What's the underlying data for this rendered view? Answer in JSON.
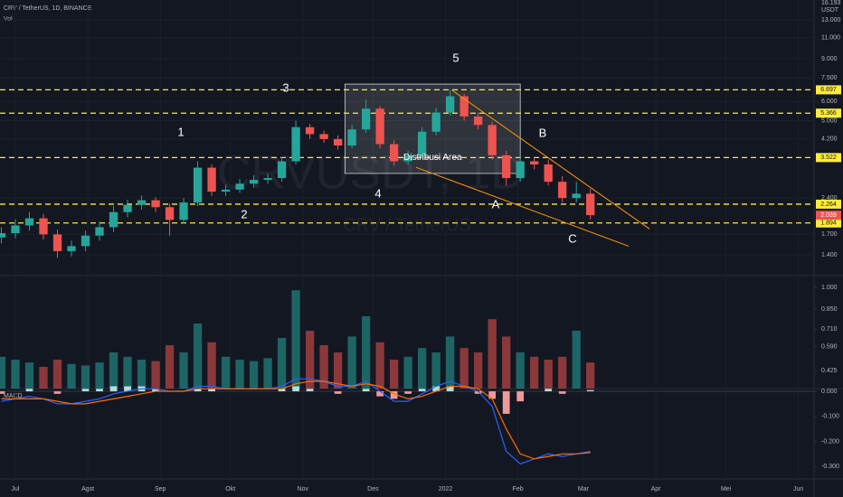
{
  "header": {
    "symbol": "CRV / TetherUS, 1D, BINANCE",
    "vol_label": "Vol",
    "macd_label": "MACD",
    "watermark": "CRVUSDT, 1D",
    "watermark_sub": "CRV / TetherUS",
    "unit": "USDT",
    "axis_top": 16.193
  },
  "chart_data": [
    {
      "type": "candlestick",
      "log_scale": true,
      "grid": true,
      "x": [
        -6,
        0,
        6,
        12,
        18,
        24,
        30,
        36,
        42,
        48,
        54,
        60,
        66,
        72,
        78,
        84,
        90,
        96,
        102,
        108,
        114,
        120,
        126,
        132,
        138,
        144,
        150,
        156,
        162,
        168,
        174,
        180,
        186,
        192,
        198,
        204,
        210,
        216,
        222,
        228,
        234,
        240,
        246
      ],
      "open": [
        1.65,
        1.72,
        1.85,
        1.98,
        1.7,
        1.45,
        1.52,
        1.68,
        1.82,
        2.1,
        2.25,
        2.35,
        2.2,
        1.95,
        2.3,
        3.2,
        2.55,
        2.6,
        2.75,
        2.85,
        2.9,
        3.4,
        4.7,
        4.4,
        4.2,
        3.95,
        4.6,
        5.6,
        4.0,
        3.4,
        3.6,
        4.5,
        5.4,
        6.3,
        5.2,
        4.8,
        3.6,
        2.9,
        3.4,
        3.3,
        2.8,
        2.4,
        2.5
      ],
      "high": [
        1.82,
        1.96,
        2.1,
        2.06,
        1.78,
        1.6,
        1.76,
        1.92,
        2.22,
        2.36,
        2.46,
        2.42,
        2.28,
        2.4,
        3.4,
        3.3,
        2.72,
        2.88,
        2.98,
        3.02,
        3.55,
        5.0,
        4.85,
        4.55,
        4.35,
        4.8,
        6.1,
        5.75,
        4.15,
        3.75,
        4.7,
        5.65,
        6.7,
        6.45,
        5.4,
        4.95,
        3.75,
        3.55,
        3.55,
        3.45,
        2.95,
        2.8,
        2.62
      ],
      "low": [
        1.56,
        1.64,
        1.76,
        1.62,
        1.36,
        1.38,
        1.45,
        1.6,
        1.74,
        2.0,
        2.15,
        2.1,
        1.68,
        1.88,
        2.22,
        2.45,
        2.45,
        2.52,
        2.65,
        2.75,
        2.8,
        3.3,
        4.2,
        4.05,
        3.8,
        3.85,
        4.45,
        3.85,
        3.25,
        3.3,
        3.5,
        4.35,
        5.25,
        5.0,
        4.6,
        3.45,
        2.7,
        2.8,
        3.15,
        2.7,
        2.3,
        2.3,
        1.96
      ],
      "close": [
        1.72,
        1.85,
        1.98,
        1.7,
        1.45,
        1.52,
        1.68,
        1.82,
        2.1,
        2.25,
        2.35,
        2.2,
        1.95,
        2.3,
        3.2,
        2.55,
        2.6,
        2.75,
        2.85,
        2.9,
        3.4,
        4.7,
        4.4,
        4.2,
        3.95,
        4.6,
        5.6,
        4.0,
        3.4,
        3.6,
        4.5,
        5.4,
        6.3,
        5.2,
        4.8,
        3.6,
        2.9,
        3.4,
        3.3,
        2.8,
        2.4,
        2.5,
        2.04
      ],
      "up_color": "#26a69a",
      "down_color": "#ef5350",
      "xlim": [
        -6.58,
        341.7
      ],
      "xticks": [
        {
          "value": 0,
          "label": "Jul"
        },
        {
          "value": 31,
          "label": "Agst"
        },
        {
          "value": 62,
          "label": "Sep"
        },
        {
          "value": 92,
          "label": "Okt"
        },
        {
          "value": 123,
          "label": "Nov"
        },
        {
          "value": 153,
          "label": "Des"
        },
        {
          "value": 184,
          "label": "2022"
        },
        {
          "value": 215,
          "label": "Feb"
        },
        {
          "value": 243,
          "label": "Mar"
        },
        {
          "value": 274,
          "label": "Apr"
        },
        {
          "value": 304,
          "label": "Mei"
        },
        {
          "value": 335,
          "label": "Jun"
        }
      ],
      "ylim": [
        1.2,
        15.7
      ],
      "yticks": [
        {
          "value": 13,
          "label": "13.000"
        },
        {
          "value": 11,
          "label": "11.000"
        },
        {
          "value": 9,
          "label": "9.000"
        },
        {
          "value": 7.5,
          "label": "7.500"
        },
        {
          "value": 6,
          "label": "6.000"
        },
        {
          "value": 5,
          "label": "5.000"
        },
        {
          "value": 4.2,
          "label": "4.200"
        },
        {
          "value": 2.4,
          "label": "2.400"
        },
        {
          "value": 1.7,
          "label": "1.700"
        },
        {
          "value": 1.4,
          "label": "1.400"
        }
      ],
      "levels": [
        6.697,
        5.366,
        3.522,
        2.264,
        1.894
      ],
      "level_color": "#ffeb3b",
      "last_price": 2.039,
      "last_color": "#ef5350",
      "box": {
        "label": "Distribusi Area",
        "x": [
          141,
          216
        ],
        "y": [
          7.07,
          3.03
        ]
      },
      "trendlines": [
        {
          "x": [
            186.9,
            271.3
          ],
          "y": [
            6.66,
            1.79
          ]
        },
        {
          "x": [
            171.4,
            262.4
          ],
          "y": [
            3.21,
            1.52
          ]
        }
      ],
      "trend_color": "#ff9800",
      "annotations": [
        "1",
        "2",
        "3",
        "4",
        "5",
        "A",
        "B",
        "C"
      ]
    },
    {
      "type": "bar",
      "x": [
        -6,
        0,
        6,
        12,
        18,
        24,
        30,
        36,
        42,
        48,
        54,
        60,
        66,
        72,
        78,
        84,
        90,
        96,
        102,
        108,
        114,
        120,
        126,
        132,
        138,
        144,
        150,
        156,
        162,
        168,
        174,
        180,
        186,
        192,
        198,
        204,
        210,
        216,
        222,
        228,
        234,
        240,
        246
      ],
      "values": [
        0.52,
        0.5,
        0.48,
        0.45,
        0.5,
        0.47,
        0.46,
        0.48,
        0.55,
        0.52,
        0.5,
        0.49,
        0.6,
        0.55,
        0.75,
        0.62,
        0.52,
        0.5,
        0.49,
        0.51,
        0.65,
        0.98,
        0.7,
        0.6,
        0.55,
        0.66,
        0.8,
        0.62,
        0.5,
        0.52,
        0.58,
        0.55,
        0.66,
        0.58,
        0.55,
        0.78,
        0.66,
        0.55,
        0.52,
        0.5,
        0.52,
        0.7,
        0.48
      ],
      "up_color": "#26a69a",
      "down_color": "#ef5350",
      "ylim": [
        0.3,
        1.05
      ],
      "yticks": [
        {
          "value": 1,
          "label": "1.000"
        },
        {
          "value": 0.85,
          "label": "0.850"
        },
        {
          "value": 0.71,
          "label": "0.710"
        },
        {
          "value": 0.59,
          "label": "0.590"
        },
        {
          "value": 0.425,
          "label": "0.425"
        }
      ]
    },
    {
      "type": "line",
      "x": [
        -6,
        0,
        6,
        12,
        18,
        24,
        30,
        36,
        42,
        48,
        54,
        60,
        66,
        72,
        78,
        84,
        90,
        96,
        102,
        108,
        114,
        120,
        126,
        132,
        138,
        144,
        150,
        156,
        162,
        168,
        174,
        180,
        186,
        192,
        198,
        204,
        210,
        216,
        222,
        228,
        234,
        240,
        246
      ],
      "series": [
        {
          "color": "#2962ff",
          "values": [
            -0.04,
            -0.03,
            -0.02,
            -0.03,
            -0.05,
            -0.05,
            -0.04,
            -0.03,
            -0.01,
            0.0,
            0.01,
            0.01,
            0.0,
            0.0,
            0.02,
            0.02,
            0.01,
            0.01,
            0.01,
            0.01,
            0.02,
            0.05,
            0.05,
            0.04,
            0.02,
            0.02,
            0.04,
            0.0,
            -0.04,
            -0.04,
            -0.01,
            0.02,
            0.04,
            0.02,
            0.0,
            -0.06,
            -0.24,
            -0.29,
            -0.27,
            -0.25,
            -0.26,
            -0.25,
            -0.24
          ]
        },
        {
          "color": "#ff6d00",
          "values": [
            -0.03,
            -0.03,
            -0.03,
            -0.03,
            -0.04,
            -0.05,
            -0.05,
            -0.04,
            -0.03,
            -0.02,
            -0.01,
            0.0,
            0.0,
            0.0,
            0.01,
            0.01,
            0.01,
            0.01,
            0.01,
            0.01,
            0.01,
            0.03,
            0.04,
            0.04,
            0.03,
            0.02,
            0.03,
            0.02,
            -0.01,
            -0.03,
            -0.02,
            0.0,
            0.02,
            0.02,
            0.01,
            -0.03,
            -0.15,
            -0.25,
            -0.27,
            -0.26,
            -0.25,
            -0.25,
            -0.245
          ]
        }
      ],
      "histogram": {
        "up_color": "#b2dfdb",
        "down_color": "#ef9a9a",
        "values": [
          -0.01,
          0.0,
          0.01,
          0.0,
          -0.01,
          0.0,
          0.01,
          0.01,
          0.02,
          0.02,
          0.02,
          0.01,
          0.0,
          0.0,
          0.01,
          0.01,
          0.0,
          0.0,
          0.0,
          0.0,
          0.01,
          0.02,
          0.01,
          0.0,
          -0.01,
          0.0,
          0.01,
          -0.02,
          -0.03,
          -0.01,
          0.01,
          0.02,
          0.02,
          0.0,
          -0.01,
          -0.03,
          -0.09,
          -0.04,
          0.0,
          0.01,
          -0.01,
          0.0,
          0.005
        ]
      },
      "ylim": [
        -0.35,
        0.011
      ],
      "yticks": [
        {
          "value": 0,
          "label": "0.000"
        },
        {
          "value": -0.1,
          "label": "-0.100"
        },
        {
          "value": -0.2,
          "label": "-0.200"
        },
        {
          "value": -0.3,
          "label": "-0.300"
        }
      ]
    }
  ]
}
